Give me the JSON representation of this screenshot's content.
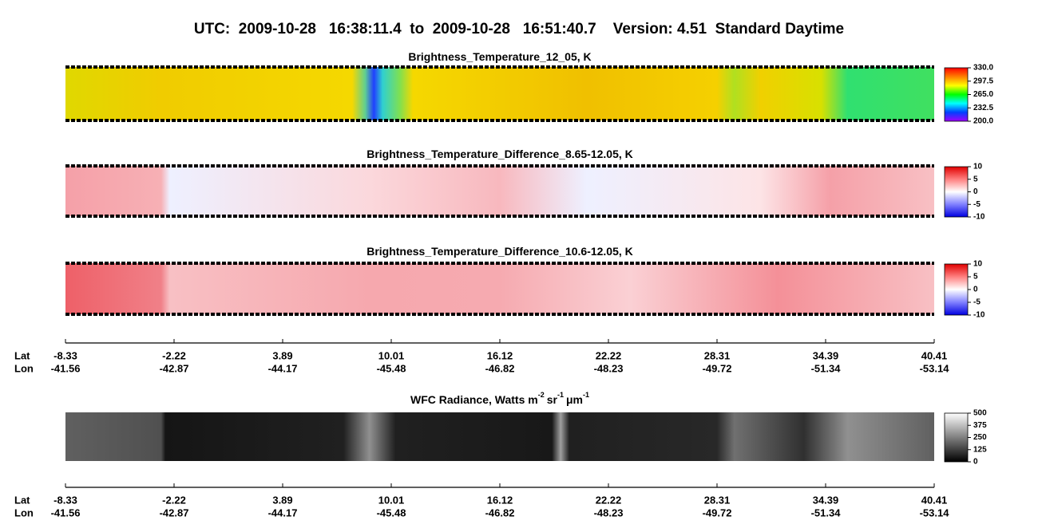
{
  "title": "UTC:  2009-10-28   16:38:11.4  to  2009-10-28   16:51:40.7    Version: 4.51  Standard Daytime",
  "panels": [
    {
      "title": [
        "Brightness_Temperature_12_05, K"
      ],
      "range": [
        200,
        330
      ],
      "colors": [
        "#ff0000",
        "#ff8000",
        "#ffff00",
        "#00ff00",
        "#00ffff",
        "#0040ff",
        "#a000ff"
      ],
      "ticks": [
        {
          "value": 330,
          "label": "330.0"
        },
        {
          "value": 297.5,
          "label": "297.5"
        },
        {
          "value": 265,
          "label": "265.0"
        },
        {
          "value": 232.5,
          "label": "232.5"
        },
        {
          "value": 200,
          "label": "200.0"
        }
      ]
    },
    {
      "title": [
        "Brightness_Temperature_Difference_8.65-12.05, K"
      ],
      "range": [
        -10,
        10
      ],
      "colors": [
        "#e00000",
        "#ff8080",
        "#ffffff",
        "#8080ff",
        "#0000e0"
      ],
      "ticks": [
        10,
        5,
        0,
        -5,
        -10
      ]
    },
    {
      "title": [
        "Brightness_Temperature_Difference_10.6-12.05, K"
      ],
      "range": [
        -10,
        10
      ],
      "colors": [
        "#e00000",
        "#ff8080",
        "#ffffff",
        "#8080ff",
        "#0000e0"
      ],
      "ticks": [
        10,
        5,
        0,
        -5,
        -10
      ]
    },
    {
      "title": [
        "WFC Radiance, Watts m",
        "-2",
        "sr",
        "-1",
        "μm",
        "-1"
      ],
      "range": [
        0,
        500
      ],
      "colors": [
        "#ffffff",
        "#000000"
      ],
      "ticks": [
        500,
        375,
        250,
        125,
        0
      ]
    }
  ],
  "axes": [
    {
      "lat_label": "Lat",
      "lon_label": "Lon",
      "lat": [
        -8.33,
        -2.22,
        3.89,
        10.01,
        16.12,
        22.22,
        28.31,
        34.39,
        40.41
      ],
      "lon": [
        -41.56,
        -42.87,
        -44.17,
        -45.48,
        -46.82,
        -48.23,
        -49.72,
        -51.34,
        -53.14
      ]
    },
    {
      "lat_label": "Lat",
      "lon_label": "Lon",
      "lat": [
        -8.33,
        -2.22,
        3.89,
        10.01,
        16.12,
        22.22,
        28.31,
        34.39,
        40.41
      ],
      "lon": [
        -41.56,
        -42.87,
        -44.17,
        -45.48,
        -46.82,
        -48.23,
        -49.72,
        -51.34,
        -53.14
      ]
    }
  ]
}
